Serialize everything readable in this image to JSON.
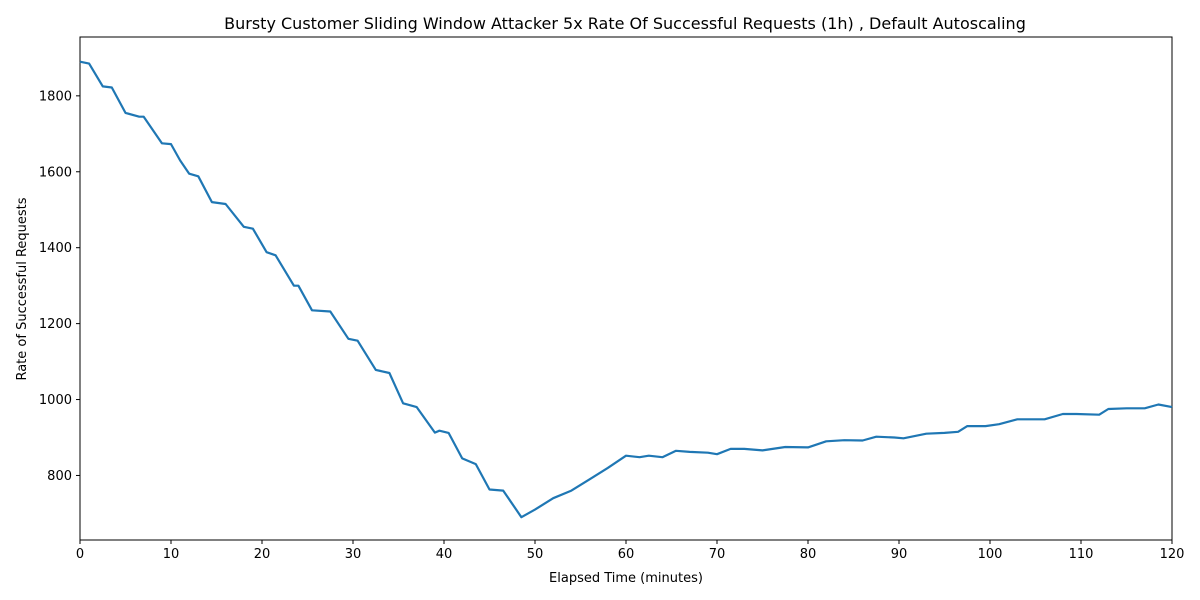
{
  "chart_data": {
    "type": "line",
    "title": "Bursty Customer Sliding Window Attacker 5x Rate Of Successful Requests (1h) , Default Autoscaling",
    "xlabel": "Elapsed Time (minutes)",
    "ylabel": "Rate of Successful Requests",
    "xlim": [
      0,
      120
    ],
    "ylim": [
      630,
      1955
    ],
    "xticks": [
      0,
      10,
      20,
      30,
      40,
      50,
      60,
      70,
      80,
      90,
      100,
      110,
      120
    ],
    "yticks": [
      800,
      1000,
      1200,
      1400,
      1600,
      1800
    ],
    "grid": false,
    "legend": "none",
    "series": [
      {
        "color": "#1f77b4",
        "x": [
          0,
          1,
          2.5,
          3.5,
          5,
          6.5,
          7,
          9,
          10,
          11,
          12,
          13,
          14.5,
          16,
          18,
          19,
          20.5,
          21.5,
          23.5,
          24,
          25.5,
          27.5,
          29.5,
          30.5,
          32.5,
          34,
          35.5,
          37,
          39,
          39.5,
          40.5,
          42,
          43.5,
          45,
          46.5,
          48.5,
          50,
          52,
          54,
          56,
          58,
          60,
          61.5,
          62.5,
          64,
          65.5,
          67,
          69,
          70,
          71.5,
          73,
          75,
          77.5,
          80,
          82,
          84,
          86,
          87.5,
          89.5,
          90.5,
          93,
          95,
          96.5,
          97.5,
          99.5,
          101,
          103,
          106,
          108,
          109.5,
          112,
          113,
          115,
          117,
          118.5,
          120
        ],
        "y": [
          1890,
          1885,
          1825,
          1822,
          1755,
          1745,
          1745,
          1675,
          1673,
          1630,
          1595,
          1588,
          1520,
          1515,
          1455,
          1450,
          1388,
          1380,
          1300,
          1300,
          1235,
          1232,
          1160,
          1155,
          1078,
          1070,
          990,
          980,
          913,
          918,
          912,
          845,
          830,
          763,
          760,
          690,
          710,
          740,
          760,
          790,
          820,
          852,
          848,
          852,
          848,
          865,
          862,
          860,
          856,
          870,
          870,
          866,
          875,
          874,
          890,
          893,
          892,
          902,
          900,
          898,
          910,
          912,
          915,
          930,
          930,
          935,
          948,
          948,
          962,
          962,
          960,
          975,
          977,
          977,
          987,
          980
        ]
      }
    ]
  }
}
